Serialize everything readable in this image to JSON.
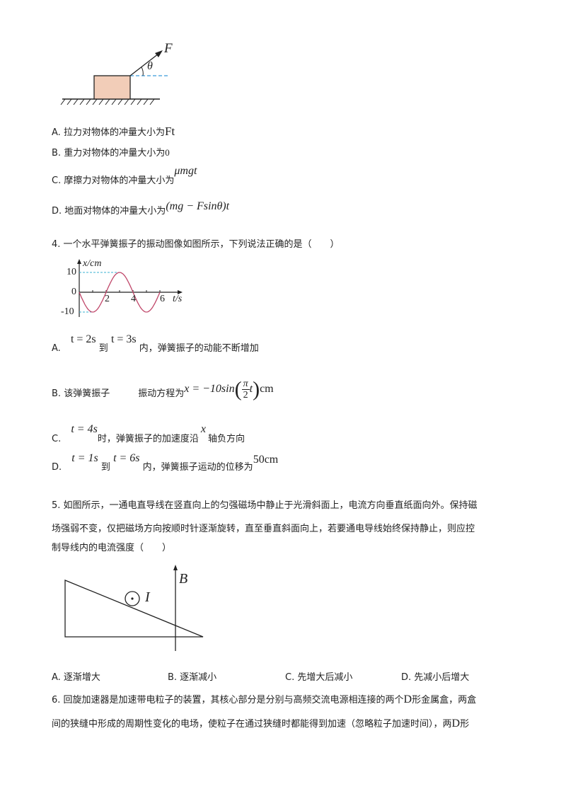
{
  "q3": {
    "figure": {
      "force_label": "F",
      "angle_label": "θ",
      "block_color": "#f2cdb8",
      "dash_color": "#3a9ad9"
    },
    "options": [
      {
        "letter": "A.",
        "text": "拉力对物体的冲量大小为",
        "math": "Ft"
      },
      {
        "letter": "B.",
        "text": "重力对物体的冲量大小为",
        "math": "0"
      },
      {
        "letter": "C.",
        "text": "摩擦力对物体的冲量大小为",
        "math": "μmgt"
      },
      {
        "letter": "D.",
        "text": "地面对物体的冲量大小为",
        "math": "(mg − Fsinθ)t"
      }
    ]
  },
  "q4": {
    "stem": "4. 一个水平弹簧振子的振动图像如图所示，下列说法正确的是（　　）",
    "chart_data": {
      "type": "line",
      "xlabel": "t/s",
      "ylabel": "x/cm",
      "x_ticks": [
        "2",
        "4",
        "6"
      ],
      "y_ticks": [
        "10",
        "0",
        "-10"
      ],
      "function": "x = -10 sin(πt/2)",
      "x_range": [
        0,
        6
      ],
      "y_range": [
        -10,
        10
      ],
      "line_color": "#c0476a",
      "guide_color": "#3ab0d0"
    },
    "options": [
      {
        "letter": "A.",
        "m1": "t = 2s",
        "mid": "到",
        "m2": "t = 3s",
        "text": "内，弹簧振子的动能不断增加"
      },
      {
        "letter": "B.",
        "text1": "该弹簧振子",
        "text2": "振动方程为",
        "m1": "x = −10sin",
        "num": "π",
        "den": "2",
        "var": "t",
        "unit": "cm"
      },
      {
        "letter": "C.",
        "m1": "t = 4s",
        "text1": "时，弹簧振子的加速度沿",
        "m2": "x",
        "text2": "轴负方向"
      },
      {
        "letter": "D.",
        "m1": "t = 1s",
        "mid": "到",
        "m2": "t = 6s",
        "text": "内，弹簧振子运动的位移为",
        "m3": "50cm"
      }
    ]
  },
  "q5": {
    "stem_lines": [
      "5. 如图所示，一通电直导线在竖直向上的匀强磁场中静止于光滑斜面上，电流方向垂直纸面向外。保持磁",
      "场强弱不变，仅把磁场方向按顺时针逐渐旋转，直至垂直斜面向上，若要通电导线始终保持静止，则应控",
      "制导线内的电流强度（　　）"
    ],
    "figure": {
      "field_label": "B",
      "current_label": "I"
    },
    "options": [
      "A. 逐渐增大",
      "B. 逐渐减小",
      "C. 先增大后减小",
      "D. 先减小后增大"
    ]
  },
  "q6": {
    "line1a": "6. 回旋加速器是加速带电粒子的装置，其核心部分是分别与高频交流电源相连接的两个",
    "line1d": "D",
    "line1b": "形金属盒，两盒",
    "line2a": "间的狭缝中形成的周期性变化的电场，使粒子在通过狭缝时都能得到加速（忽略粒子加速时间），两",
    "line2d": "D",
    "line2b": "形"
  }
}
